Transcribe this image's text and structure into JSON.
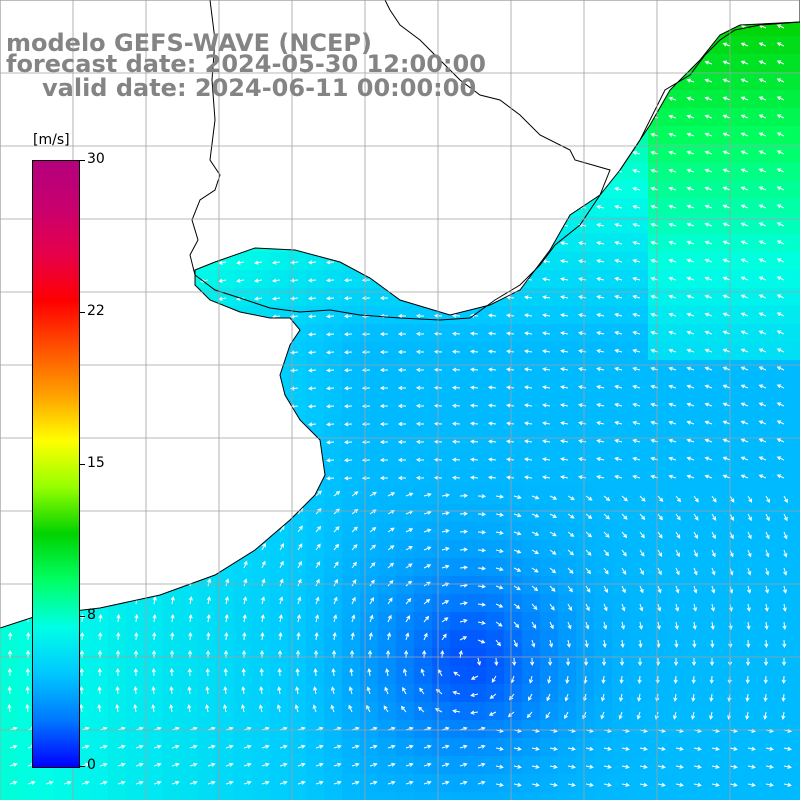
{
  "title": {
    "line1": "modelo GEFS-WAVE (NCEP)",
    "line2": "forecast date: 2024-05-30 12:00:00",
    "line3": "valid date: 2024-06-11 00:00:00"
  },
  "colorbar": {
    "unit": "[m/s]",
    "min": 0,
    "max": 30,
    "tick_labels": [
      "30",
      "22",
      "15",
      "8",
      "0"
    ],
    "tick_values": [
      30,
      22,
      15,
      8,
      0
    ],
    "colors": [
      "#0000ff",
      "#0078ff",
      "#00c8ff",
      "#00ffe6",
      "#00ff64",
      "#00d200",
      "#96ff00",
      "#ffff00",
      "#ffa000",
      "#ff5000",
      "#ff0000",
      "#e6004b",
      "#c8006e",
      "#b4007d"
    ]
  },
  "map": {
    "land_color": "#ffffff",
    "coast_color": "#000000",
    "grid_color": "#a0a0a0",
    "arrow_color": "#ffffff",
    "variable": "wind speed and direction"
  }
}
